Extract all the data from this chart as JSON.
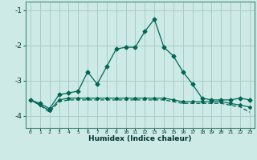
{
  "xlabel": "Humidex (Indice chaleur)",
  "background_color": "#ceeae6",
  "grid_color": "#a8cdc8",
  "line_color": "#006655",
  "x_values": [
    0,
    1,
    2,
    3,
    4,
    5,
    6,
    7,
    8,
    9,
    10,
    11,
    12,
    13,
    14,
    15,
    16,
    17,
    18,
    19,
    20,
    21,
    22,
    23
  ],
  "line1": [
    -3.55,
    -3.65,
    -3.8,
    -3.4,
    -3.35,
    -3.3,
    -2.75,
    -3.1,
    -2.6,
    -2.1,
    -2.05,
    -2.05,
    -1.6,
    -1.25,
    -2.05,
    -2.3,
    -2.75,
    -3.1,
    -3.5,
    -3.55,
    -3.55,
    -3.55,
    -3.5,
    -3.55
  ],
  "line2": [
    -3.55,
    -3.7,
    -3.85,
    -3.55,
    -3.5,
    -3.5,
    -3.5,
    -3.5,
    -3.5,
    -3.5,
    -3.5,
    -3.5,
    -3.5,
    -3.5,
    -3.5,
    -3.55,
    -3.6,
    -3.6,
    -3.6,
    -3.6,
    -3.6,
    -3.65,
    -3.7,
    -3.75
  ],
  "line3": [
    -3.55,
    -3.7,
    -3.9,
    -3.6,
    -3.55,
    -3.55,
    -3.55,
    -3.55,
    -3.55,
    -3.55,
    -3.55,
    -3.55,
    -3.55,
    -3.55,
    -3.55,
    -3.6,
    -3.65,
    -3.65,
    -3.65,
    -3.65,
    -3.65,
    -3.7,
    -3.75,
    -3.9
  ],
  "ylim": [
    -4.35,
    -0.75
  ],
  "yticks": [
    -4,
    -3,
    -2,
    -1
  ],
  "xlim": [
    -0.5,
    23.5
  ]
}
